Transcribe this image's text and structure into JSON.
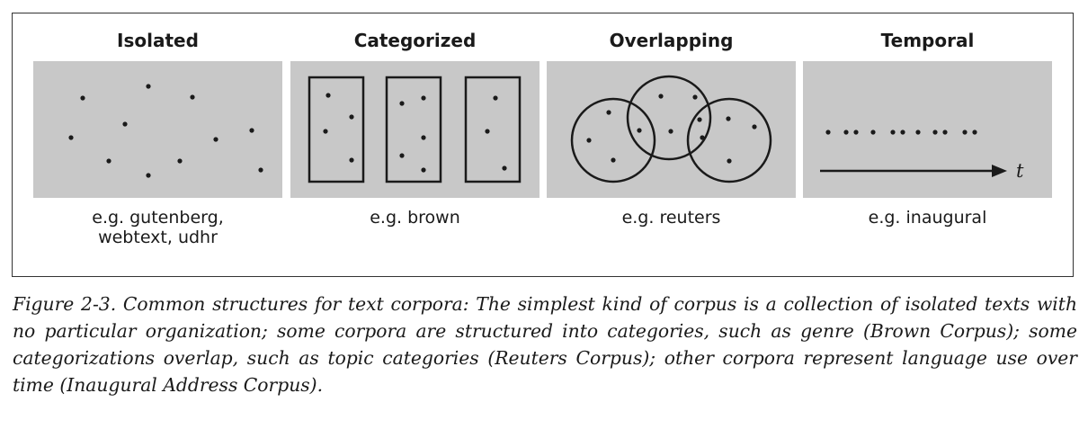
{
  "panels": [
    {
      "title": "Isolated",
      "caption": [
        "e.g. gutenberg,",
        "webtext, udhr"
      ]
    },
    {
      "title": "Categorized",
      "caption": [
        "e.g. brown"
      ]
    },
    {
      "title": "Overlapping",
      "caption": [
        "e.g. reuters"
      ]
    },
    {
      "title": "Temporal",
      "caption": [
        "e.g. inaugural"
      ],
      "axis_label": "t"
    }
  ],
  "figure_caption": {
    "label": "Figure 2-3.",
    "text": "Common structures for text corpora: The simplest kind of corpus is a collection of isolated texts with no particular organization; some corpora are structured into categories, such as genre (Brown Corpus); some categorizations overlap, such as topic categories (Reuters Corpus); other corpora represent language use over time (Inaugural Address Corpus)."
  },
  "colors": {
    "panel_fill": "#c8c8c8",
    "ink": "#1a1a1a",
    "frame": "#333333"
  }
}
